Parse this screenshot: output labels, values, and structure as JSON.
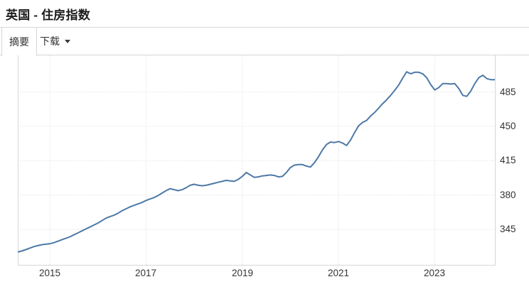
{
  "header": {
    "title": "英国 - 住房指数"
  },
  "tabs": {
    "summary": "摘要",
    "download": "下载"
  },
  "chart_data": {
    "type": "line",
    "title": "英国 - 住房指数",
    "xlabel": "",
    "ylabel": "",
    "grid": "dotted",
    "legend": "none",
    "line_color": "#4d79a7",
    "grid_color": "#d9d9d9",
    "axis_text_color": "#333333",
    "y_ticks": [
      345,
      380,
      415,
      450,
      485
    ],
    "ylim": [
      309,
      524
    ],
    "x_ticks": [
      {
        "label": "2015",
        "month_index": 8
      },
      {
        "label": "2017",
        "month_index": 32
      },
      {
        "label": "2019",
        "month_index": 56
      },
      {
        "label": "2021",
        "month_index": 80
      },
      {
        "label": "2023",
        "month_index": 104
      }
    ],
    "series": [
      {
        "name": "住房指数",
        "frequency": "monthly",
        "x_start": "2014-05",
        "x_end": "2024-04",
        "values": [
          322,
          323,
          324.5,
          326,
          327.5,
          328.5,
          329.5,
          330,
          330.5,
          331.5,
          333,
          334.5,
          336,
          337.5,
          339.5,
          341.5,
          343.5,
          345.5,
          347.5,
          349.5,
          351.5,
          354,
          356.5,
          358,
          359.5,
          361.5,
          364,
          366,
          368,
          369.5,
          371,
          372.5,
          374.5,
          376,
          377.5,
          379.5,
          382,
          384.5,
          386.5,
          385.5,
          384.5,
          385.5,
          387.5,
          390,
          391,
          390,
          389.5,
          390,
          391,
          392,
          393,
          394,
          395,
          394.5,
          394,
          396,
          399,
          403,
          400.5,
          398,
          398.5,
          399.5,
          400,
          400.5,
          400,
          398.5,
          399,
          403,
          408,
          410.5,
          411,
          411,
          409.5,
          408.5,
          413,
          419,
          426,
          431.5,
          434,
          433.5,
          434.5,
          433,
          430.5,
          436,
          443.5,
          450.5,
          454,
          456,
          460.5,
          464,
          468.5,
          473,
          477,
          481.5,
          486.5,
          492,
          499,
          505.5,
          503.5,
          505,
          505,
          503.5,
          499.5,
          492.5,
          487,
          489.5,
          493.5,
          493.5,
          493,
          493.5,
          488.5,
          481.5,
          480.5,
          486,
          493.5,
          499.5,
          502,
          498.5,
          497.5,
          497.5
        ]
      }
    ]
  }
}
